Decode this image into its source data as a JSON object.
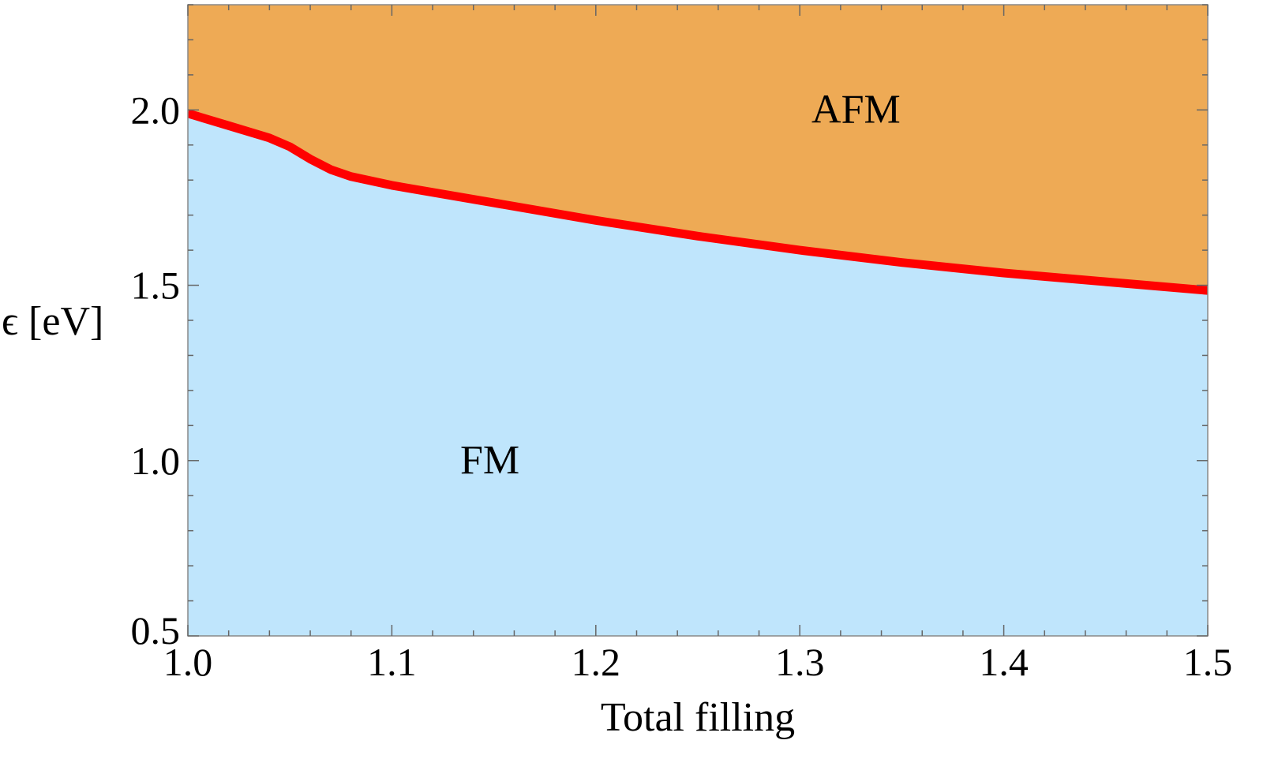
{
  "chart_data": {
    "type": "area",
    "xlabel": "Total filling",
    "ylabel": "ϵ [eV]",
    "xlim": [
      1.0,
      1.5
    ],
    "ylim": [
      0.5,
      2.3
    ],
    "x_ticks": [
      1.0,
      1.1,
      1.2,
      1.3,
      1.4,
      1.5
    ],
    "x_tick_labels": [
      "1.0",
      "1.1",
      "1.2",
      "1.3",
      "1.4",
      "1.5"
    ],
    "y_ticks": [
      0.5,
      1.0,
      1.5,
      2.0
    ],
    "y_tick_labels": [
      "0.5",
      "1.0",
      "1.5",
      "2.0"
    ],
    "boundary": {
      "x": [
        1.0,
        1.02,
        1.04,
        1.05,
        1.06,
        1.07,
        1.08,
        1.1,
        1.15,
        1.2,
        1.25,
        1.3,
        1.35,
        1.4,
        1.45,
        1.5
      ],
      "y": [
        1.99,
        1.955,
        1.92,
        1.895,
        1.86,
        1.83,
        1.81,
        1.785,
        1.735,
        1.685,
        1.64,
        1.6,
        1.565,
        1.535,
        1.51,
        1.485
      ]
    },
    "regions": [
      {
        "label": "AFM",
        "position": "above",
        "color": "#EEAA55",
        "label_x": 1.35,
        "label_y": 2.0
      },
      {
        "label": "FM",
        "position": "below",
        "color": "#BFE5FC",
        "label_x": 1.15,
        "label_y": 1.0
      }
    ],
    "line_color": "#FF0000",
    "grid": false,
    "legend": "none"
  }
}
